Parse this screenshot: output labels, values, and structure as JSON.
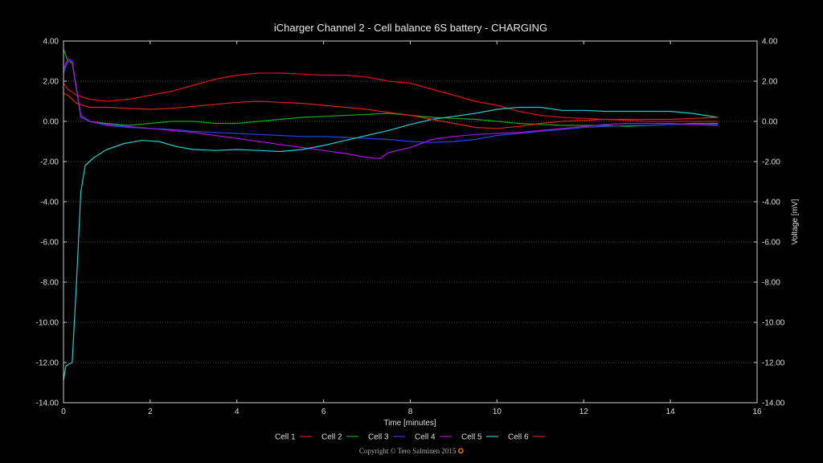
{
  "chart_data": {
    "type": "line",
    "title": "iCharger Channel 2 - Cell balance 6S battery - CHARGING",
    "xlabel": "Time [minutes]",
    "ylabel": "Voltage [mV]",
    "xlim": [
      0,
      16
    ],
    "ylim": [
      -14,
      4
    ],
    "x_ticks": [
      "0",
      "2",
      "4",
      "6",
      "8",
      "10",
      "12",
      "14",
      "16"
    ],
    "y_ticks": [
      "-14.00",
      "-12.00",
      "-10.00",
      "-8.00",
      "-6.00",
      "-4.00",
      "-2.00",
      "0.00",
      "2.00",
      "4.00"
    ],
    "grid": true,
    "legend_position": "bottom",
    "series": [
      {
        "name": "Cell 1",
        "color": "#dd1111",
        "x": [
          0,
          0.1,
          0.3,
          0.6,
          1,
          1.5,
          2,
          2.5,
          3,
          3.5,
          4,
          4.5,
          5,
          5.5,
          6,
          6.5,
          7,
          7.5,
          8,
          8.5,
          9,
          9.5,
          10,
          10.5,
          11,
          11.5,
          12,
          12.5,
          13,
          13.5,
          14,
          14.5,
          15.1
        ],
        "y": [
          1.9,
          1.6,
          1.3,
          1.1,
          1.0,
          1.1,
          1.3,
          1.5,
          1.8,
          2.1,
          2.3,
          2.4,
          2.4,
          2.35,
          2.3,
          2.3,
          2.2,
          2.0,
          1.9,
          1.6,
          1.3,
          1.0,
          0.8,
          0.5,
          0.3,
          0.2,
          0.15,
          0.1,
          0.05,
          0.0,
          0.0,
          0.0,
          0.0
        ]
      },
      {
        "name": "Cell 2",
        "color": "#11aa11",
        "x": [
          0,
          0.1,
          0.2,
          0.4,
          0.6,
          1,
          1.5,
          2,
          2.5,
          3,
          3.5,
          4,
          4.5,
          5,
          5.5,
          6,
          6.5,
          7,
          7.5,
          8,
          8.5,
          9,
          9.5,
          10,
          10.5,
          11,
          11.5,
          12,
          12.5,
          13,
          13.5,
          14,
          14.5,
          15.1
        ],
        "y": [
          3.6,
          3.0,
          2.9,
          0.2,
          0.0,
          -0.1,
          -0.2,
          -0.1,
          0.0,
          0.0,
          -0.1,
          -0.1,
          0.0,
          0.1,
          0.2,
          0.25,
          0.3,
          0.35,
          0.4,
          0.3,
          0.2,
          0.15,
          0.1,
          0.0,
          -0.1,
          -0.15,
          -0.2,
          -0.2,
          -0.2,
          -0.25,
          -0.2,
          -0.15,
          -0.1,
          -0.1
        ]
      },
      {
        "name": "Cell 3",
        "color": "#2244ee",
        "x": [
          0,
          0.1,
          0.2,
          0.4,
          0.6,
          1,
          1.5,
          2,
          2.5,
          3,
          3.5,
          4,
          4.5,
          5,
          5.5,
          6,
          6.5,
          7,
          7.5,
          8,
          8.5,
          9,
          9.5,
          10,
          10.5,
          11,
          11.5,
          12,
          12.5,
          13,
          13.5,
          14,
          14.5,
          15.1
        ],
        "y": [
          2.4,
          3.0,
          3.0,
          0.2,
          0.0,
          -0.2,
          -0.3,
          -0.35,
          -0.4,
          -0.5,
          -0.55,
          -0.6,
          -0.65,
          -0.7,
          -0.75,
          -0.75,
          -0.8,
          -0.85,
          -0.9,
          -1.0,
          -1.05,
          -1.0,
          -0.9,
          -0.7,
          -0.6,
          -0.5,
          -0.4,
          -0.3,
          -0.25,
          -0.2,
          -0.2,
          -0.15,
          -0.15,
          -0.15
        ]
      },
      {
        "name": "Cell 4",
        "color": "#aa11dd",
        "x": [
          0,
          0.1,
          0.2,
          0.4,
          0.6,
          1,
          1.5,
          2,
          2.5,
          3,
          3.5,
          4,
          4.5,
          5,
          5.5,
          6,
          6.5,
          7,
          7.3,
          7.5,
          8,
          8.5,
          9,
          9.5,
          10,
          10.5,
          11,
          11.5,
          12,
          12.5,
          13,
          13.5,
          14,
          14.5,
          15.1
        ],
        "y": [
          2.6,
          3.1,
          3.0,
          0.3,
          0.0,
          -0.15,
          -0.25,
          -0.35,
          -0.45,
          -0.55,
          -0.7,
          -0.85,
          -1.0,
          -1.15,
          -1.3,
          -1.45,
          -1.6,
          -1.8,
          -1.85,
          -1.55,
          -1.3,
          -0.9,
          -0.75,
          -0.65,
          -0.6,
          -0.55,
          -0.45,
          -0.35,
          -0.25,
          -0.15,
          -0.1,
          -0.1,
          -0.1,
          -0.15,
          -0.2
        ]
      },
      {
        "name": "Cell 5",
        "color": "#22cccc",
        "x": [
          0,
          0.05,
          0.1,
          0.2,
          0.3,
          0.4,
          0.5,
          0.7,
          1,
          1.4,
          1.8,
          2.2,
          2.6,
          3,
          3.5,
          4,
          4.5,
          5,
          5.5,
          6,
          6.5,
          7,
          7.5,
          8,
          8.5,
          9,
          9.5,
          10,
          10.5,
          11,
          11.5,
          12,
          12.5,
          13,
          13.5,
          14,
          14.5,
          15.1
        ],
        "y": [
          -12.9,
          -12.2,
          -12.1,
          -12.0,
          -8.0,
          -3.5,
          -2.2,
          -1.8,
          -1.4,
          -1.1,
          -0.95,
          -1.0,
          -1.25,
          -1.4,
          -1.45,
          -1.4,
          -1.45,
          -1.5,
          -1.4,
          -1.2,
          -0.95,
          -0.7,
          -0.45,
          -0.15,
          0.1,
          0.25,
          0.4,
          0.6,
          0.7,
          0.7,
          0.55,
          0.55,
          0.5,
          0.5,
          0.5,
          0.5,
          0.4,
          0.2
        ]
      },
      {
        "name": "Cell 6",
        "color": "#dd2211",
        "x": [
          0,
          0.1,
          0.3,
          0.6,
          1,
          1.5,
          2,
          2.5,
          3,
          3.5,
          4,
          4.5,
          5,
          5.5,
          6,
          6.5,
          7,
          7.5,
          8,
          8.5,
          9,
          9.5,
          10,
          10.5,
          11,
          11.5,
          12,
          12.5,
          13,
          13.5,
          14,
          14.5,
          15.1
        ],
        "y": [
          1.4,
          1.3,
          0.9,
          0.7,
          0.7,
          0.65,
          0.6,
          0.65,
          0.75,
          0.85,
          0.95,
          1.0,
          0.95,
          0.9,
          0.8,
          0.7,
          0.6,
          0.45,
          0.3,
          0.1,
          -0.1,
          -0.3,
          -0.35,
          -0.25,
          -0.1,
          0.0,
          0.05,
          0.1,
          0.1,
          0.1,
          0.1,
          0.15,
          0.2
        ]
      }
    ]
  },
  "footer": {
    "copyright": "Copyright © Tero Salminen 2015"
  }
}
